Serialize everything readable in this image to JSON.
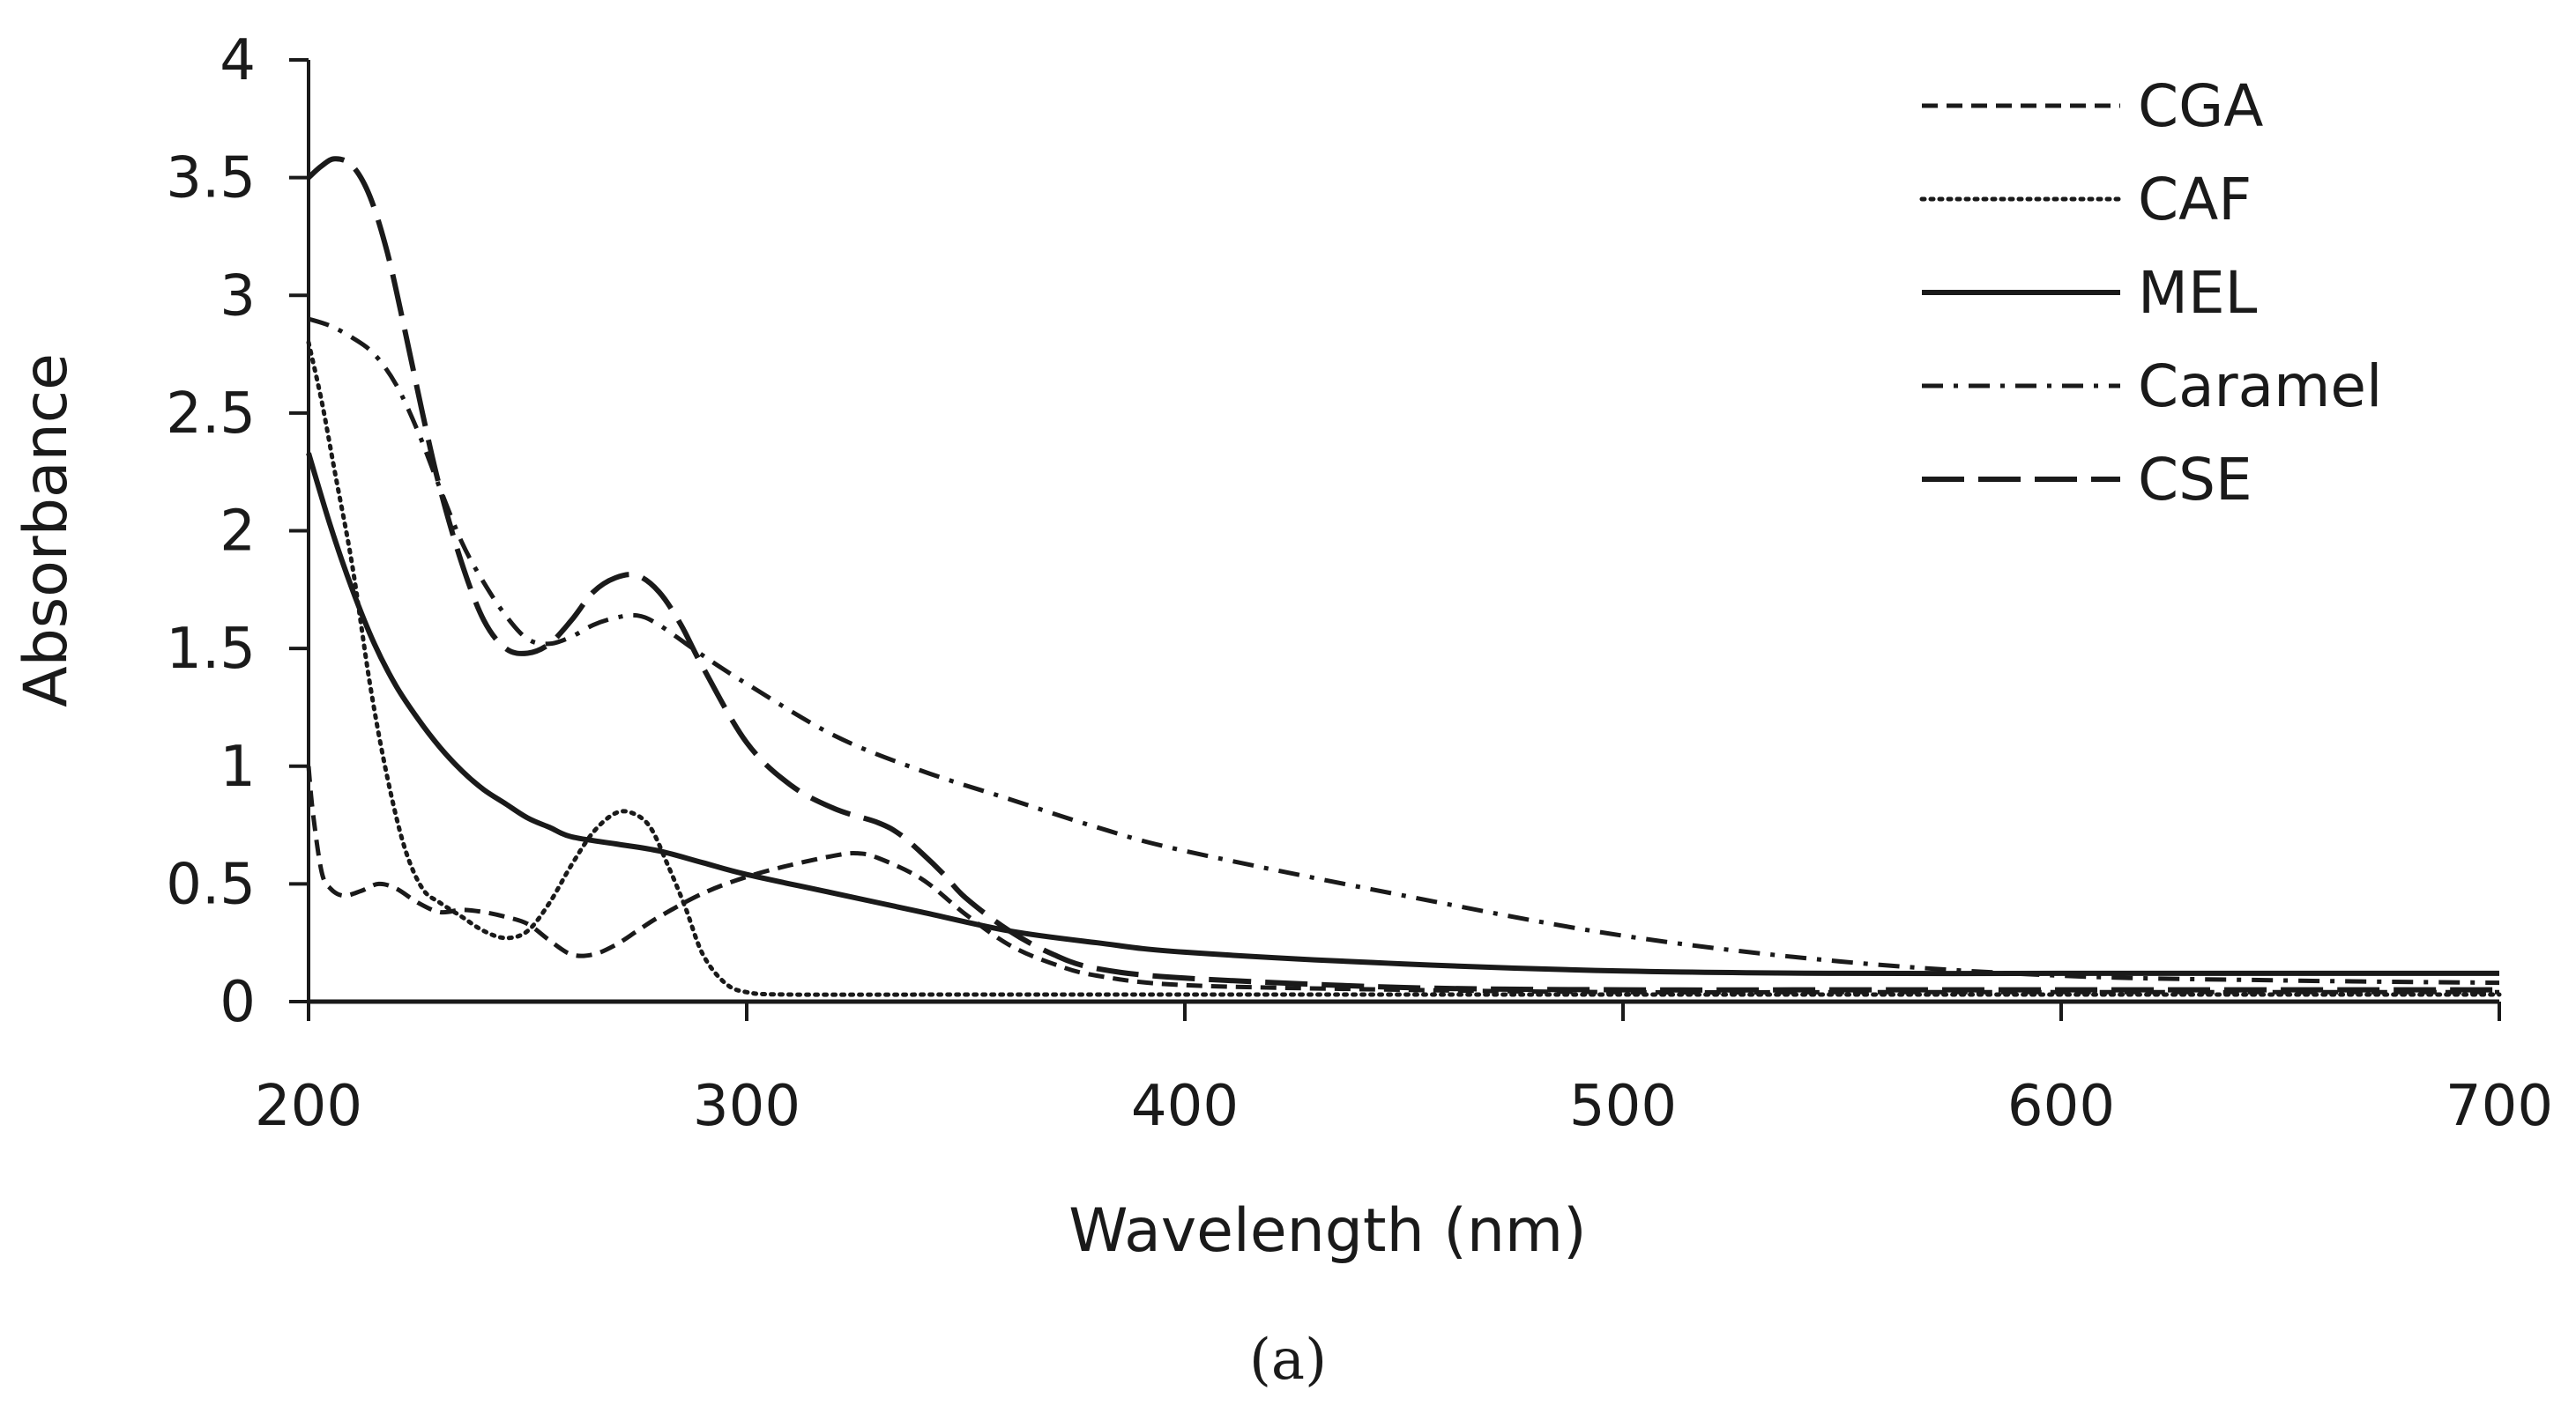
{
  "chart_data": {
    "type": "line",
    "title": "",
    "xlabel": "Wavelength (nm)",
    "ylabel": "Absorbance",
    "caption": "(a)",
    "xlim": [
      200,
      700
    ],
    "ylim": [
      0,
      4
    ],
    "xticks": [
      200,
      300,
      400,
      500,
      600,
      700
    ],
    "yticks": [
      0,
      0.5,
      1,
      1.5,
      2,
      2.5,
      3,
      3.5,
      4
    ],
    "ytick_labels": [
      "0",
      "0.5",
      "1",
      "1.5",
      "2",
      "2.5",
      "3",
      "3.5",
      "4"
    ],
    "xtick_labels": [
      "200",
      "300",
      "400",
      "500",
      "600",
      "700"
    ],
    "legend_position": "top-right",
    "color": "#1a1a1a",
    "series": [
      {
        "name": "CGA",
        "style": "short-dash",
        "x": [
          200,
          201,
          203,
          205,
          208,
          212,
          216,
          220,
          225,
          230,
          235,
          240,
          245,
          250,
          255,
          260,
          265,
          270,
          275,
          280,
          290,
          300,
          310,
          320,
          325,
          330,
          340,
          350,
          360,
          370,
          380,
          400,
          450,
          500,
          550,
          600,
          700
        ],
        "y": [
          1.0,
          0.8,
          0.55,
          0.48,
          0.45,
          0.47,
          0.5,
          0.48,
          0.42,
          0.38,
          0.39,
          0.38,
          0.36,
          0.33,
          0.26,
          0.2,
          0.2,
          0.24,
          0.3,
          0.36,
          0.46,
          0.53,
          0.58,
          0.62,
          0.63,
          0.61,
          0.52,
          0.37,
          0.24,
          0.16,
          0.11,
          0.07,
          0.05,
          0.04,
          0.04,
          0.04,
          0.04
        ]
      },
      {
        "name": "CAF",
        "style": "dotted",
        "x": [
          200,
          203,
          206,
          210,
          214,
          218,
          222,
          226,
          230,
          235,
          240,
          245,
          250,
          255,
          260,
          265,
          270,
          274,
          278,
          282,
          286,
          290,
          295,
          300,
          310,
          350,
          400,
          500,
          600,
          700
        ],
        "y": [
          2.8,
          2.55,
          2.25,
          1.85,
          1.35,
          0.95,
          0.65,
          0.48,
          0.42,
          0.36,
          0.3,
          0.27,
          0.3,
          0.42,
          0.58,
          0.72,
          0.8,
          0.8,
          0.74,
          0.58,
          0.4,
          0.2,
          0.08,
          0.04,
          0.03,
          0.03,
          0.03,
          0.03,
          0.03,
          0.03
        ]
      },
      {
        "name": "MEL",
        "style": "solid",
        "x": [
          200,
          205,
          210,
          215,
          220,
          225,
          230,
          235,
          240,
          245,
          250,
          255,
          260,
          270,
          280,
          290,
          300,
          320,
          340,
          360,
          380,
          400,
          450,
          500,
          550,
          600,
          650,
          700
        ],
        "y": [
          2.33,
          2.02,
          1.75,
          1.52,
          1.34,
          1.2,
          1.08,
          0.98,
          0.9,
          0.84,
          0.78,
          0.74,
          0.7,
          0.67,
          0.64,
          0.59,
          0.54,
          0.46,
          0.38,
          0.3,
          0.25,
          0.21,
          0.16,
          0.13,
          0.12,
          0.12,
          0.12,
          0.12
        ]
      },
      {
        "name": "Caramel",
        "style": "dash-dot",
        "x": [
          200,
          205,
          210,
          215,
          220,
          225,
          230,
          235,
          240,
          245,
          250,
          255,
          260,
          265,
          270,
          275,
          280,
          290,
          300,
          320,
          340,
          360,
          380,
          400,
          450,
          500,
          550,
          600,
          650,
          700
        ],
        "y": [
          2.9,
          2.87,
          2.82,
          2.75,
          2.62,
          2.42,
          2.18,
          1.95,
          1.78,
          1.64,
          1.54,
          1.52,
          1.55,
          1.6,
          1.63,
          1.64,
          1.6,
          1.47,
          1.35,
          1.13,
          0.98,
          0.86,
          0.74,
          0.64,
          0.45,
          0.28,
          0.17,
          0.11,
          0.09,
          0.08
        ]
      },
      {
        "name": "CSE",
        "style": "long-dash",
        "x": [
          200,
          203,
          206,
          210,
          214,
          218,
          222,
          226,
          230,
          235,
          240,
          245,
          250,
          255,
          260,
          265,
          270,
          275,
          280,
          285,
          290,
          300,
          310,
          320,
          330,
          335,
          340,
          345,
          350,
          360,
          370,
          380,
          400,
          450,
          500,
          550,
          600,
          700
        ],
        "y": [
          3.5,
          3.55,
          3.58,
          3.55,
          3.42,
          3.18,
          2.85,
          2.5,
          2.18,
          1.86,
          1.62,
          1.5,
          1.48,
          1.52,
          1.62,
          1.74,
          1.8,
          1.81,
          1.74,
          1.6,
          1.42,
          1.1,
          0.92,
          0.82,
          0.76,
          0.71,
          0.63,
          0.54,
          0.44,
          0.3,
          0.2,
          0.14,
          0.1,
          0.06,
          0.05,
          0.05,
          0.05,
          0.05
        ]
      }
    ]
  }
}
